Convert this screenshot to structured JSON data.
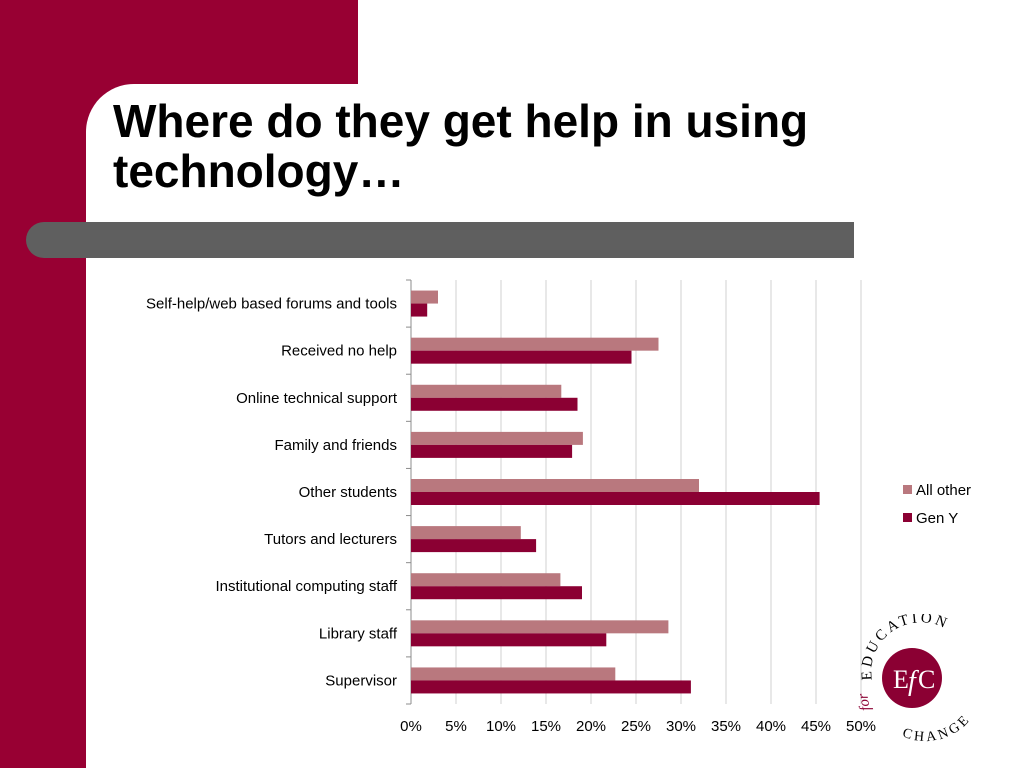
{
  "slide": {
    "title": "Where do they get help in using technology…",
    "accent_color": "#980033",
    "bar_color": "#5f5f5f"
  },
  "chart_data": {
    "type": "bar",
    "orientation": "horizontal",
    "categories": [
      "Self-help/web based forums and tools",
      "Received no help",
      "Online technical support",
      "Family and friends",
      "Other students",
      "Tutors and lecturers",
      "Institutional computing staff",
      "Library staff",
      "Supervisor"
    ],
    "series": [
      {
        "name": "All other",
        "color": "#b9787e",
        "values": [
          3,
          27.5,
          16.7,
          19.1,
          32,
          12.2,
          16.6,
          28.6,
          22.7
        ]
      },
      {
        "name": "Gen Y",
        "color": "#8b0033",
        "values": [
          1.8,
          24.5,
          18.5,
          17.9,
          45.4,
          13.9,
          19,
          21.7,
          31.1
        ]
      }
    ],
    "x_ticks": [
      "0%",
      "5%",
      "10%",
      "15%",
      "20%",
      "25%",
      "30%",
      "35%",
      "40%",
      "45%",
      "50%"
    ],
    "xlim": [
      0,
      50
    ],
    "grid": true,
    "legend_position": "right"
  },
  "logo": {
    "initials": [
      "E",
      "f",
      "C"
    ],
    "ring_text": "EDUCATION",
    "bottom_text": "CHANGE",
    "side_text": "for"
  }
}
